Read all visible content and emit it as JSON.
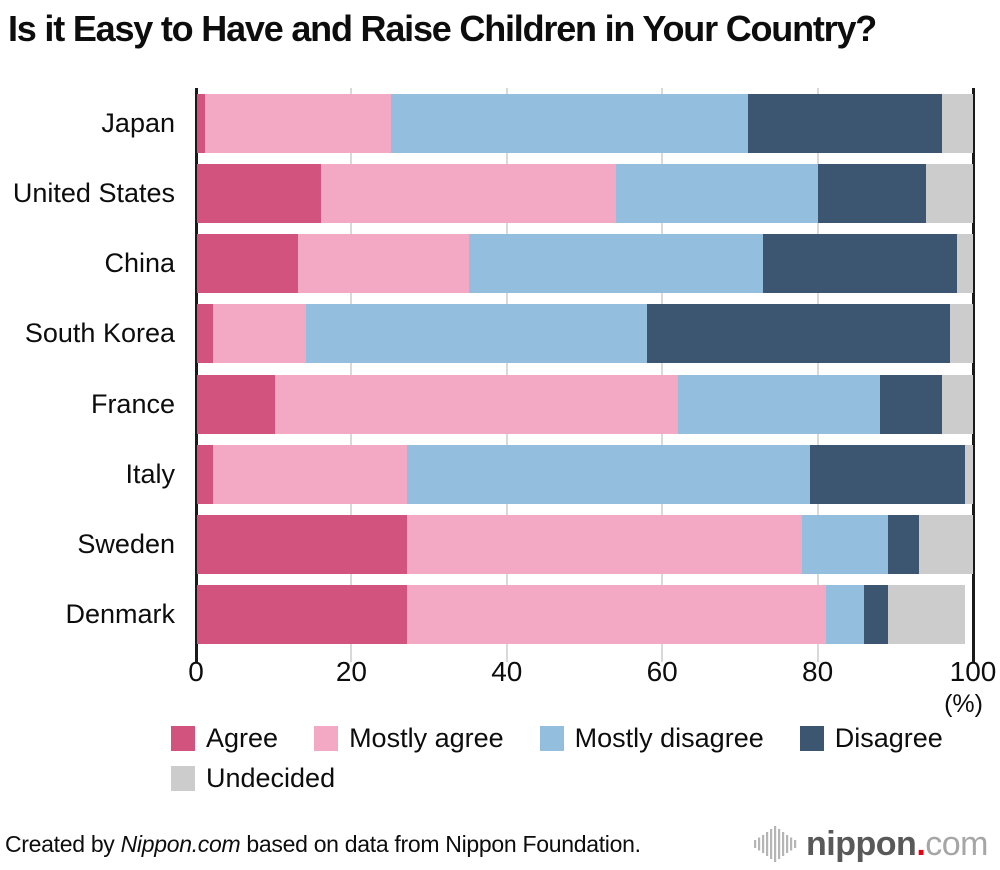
{
  "title": "Is it Easy to Have and Raise Children in Your Country?",
  "chart_data": {
    "type": "bar",
    "orientation": "horizontal",
    "stacked": true,
    "title": "Is it Easy to Have and Raise Children in Your Country?",
    "categories": [
      "Japan",
      "United States",
      "China",
      "South Korea",
      "France",
      "Italy",
      "Sweden",
      "Denmark"
    ],
    "series": [
      {
        "name": "Agree",
        "color": "#d2547e",
        "values": [
          1,
          16,
          13,
          2,
          10,
          2,
          27,
          27
        ]
      },
      {
        "name": "Mostly agree",
        "color": "#f3a9c4",
        "values": [
          24,
          38,
          22,
          12,
          52,
          25,
          51,
          54
        ]
      },
      {
        "name": "Mostly disagree",
        "color": "#93bedd",
        "values": [
          46,
          26,
          38,
          44,
          26,
          52,
          11,
          5
        ]
      },
      {
        "name": "Disagree",
        "color": "#3c5571",
        "values": [
          25,
          14,
          25,
          39,
          8,
          20,
          4,
          3
        ]
      },
      {
        "name": "Undecided",
        "color": "#cccccc",
        "values": [
          4,
          6,
          2,
          3,
          4,
          1,
          7,
          10
        ]
      }
    ],
    "xlim": [
      0,
      100
    ],
    "x_ticks": [
      0,
      20,
      40,
      60,
      80,
      100
    ],
    "unit_label": "(%)",
    "grid": "vertical",
    "legend_position": "bottom"
  },
  "axis": {
    "ticks": [
      "0",
      "20",
      "40",
      "60",
      "80",
      "100"
    ],
    "unit_label": "(%)"
  },
  "footer": {
    "credit_prefix": "Created by ",
    "credit_source": "Nippon.com",
    "credit_suffix": " based on data from Nippon Foundation.",
    "logo_main": "nippon",
    "logo_dot": ".",
    "logo_tld": "com",
    "logo_dot_color": "#e60012"
  },
  "layout_colors": {
    "grid_minor": "#d9d9d9",
    "grid_major": "#1a1a1a",
    "logo_bars": "#b5b5b5"
  }
}
